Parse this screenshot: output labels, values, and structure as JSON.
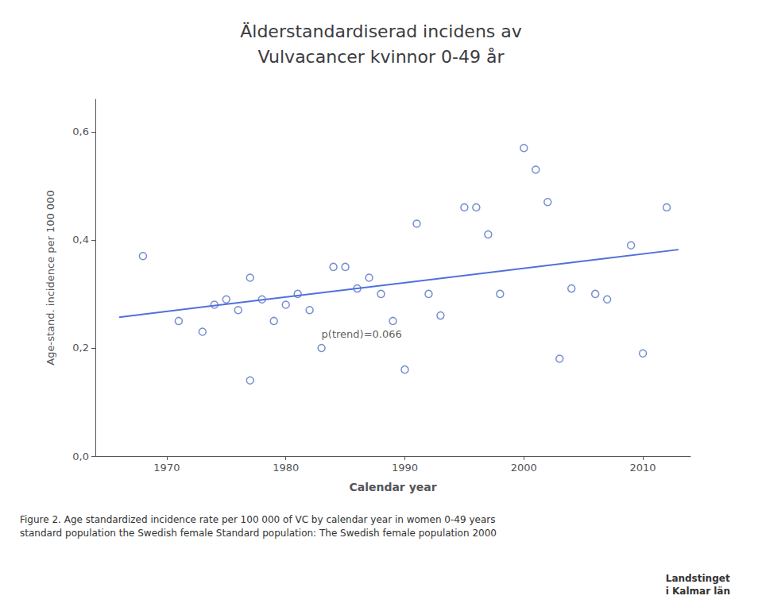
{
  "chart_data": {
    "type": "scatter",
    "title": "Älderstandardiserad incidens av\nVulvacancer kvinnor 0-49 år",
    "xlabel": "Calendar year",
    "ylabel": "Age-stand. incidence per 100 000",
    "series": [
      {
        "type": "scatter",
        "marker": "circle",
        "x": [
          1968,
          1971,
          1973,
          1974,
          1975,
          1976,
          1977,
          1978,
          1979,
          1980,
          1977,
          1981,
          1982,
          1983,
          1984,
          1985,
          1986,
          1987,
          1988,
          1989,
          1990,
          1991,
          1992,
          1993,
          1995,
          1996,
          1997,
          1998,
          2000,
          2001,
          2002,
          2003,
          2004,
          2006,
          2007,
          2009,
          2010,
          2012
        ],
        "values": [
          0.37,
          0.25,
          0.23,
          0.28,
          0.29,
          0.27,
          0.33,
          0.29,
          0.25,
          0.28,
          0.14,
          0.3,
          0.27,
          0.2,
          0.35,
          0.35,
          0.31,
          0.33,
          0.3,
          0.25,
          0.16,
          0.43,
          0.3,
          0.26,
          0.46,
          0.46,
          0.41,
          0.3,
          0.57,
          0.53,
          0.47,
          0.18,
          0.31,
          0.3,
          0.29,
          0.39,
          0.19,
          0.46
        ]
      },
      {
        "type": "line",
        "line_style": "solid",
        "x": [
          1966,
          2013
        ],
        "values": [
          0.257,
          0.382
        ]
      }
    ],
    "annotations": [
      {
        "text": "p(trend)=0.066",
        "x": 1983,
        "y": 0.235
      }
    ],
    "caption": "Figure 2. Age standardized incidence rate per 100 000 of VC by calendar year in women 0-49 years\nstandard population the Swedish female Standard population: The Swedish female population 2000",
    "logo": [
      "Landstinget",
      "i Kalmar län"
    ],
    "xlim": [
      1964,
      2014
    ],
    "ylim": [
      0.0,
      0.66
    ],
    "xticks": [
      1970,
      1980,
      1990,
      2000,
      2010
    ],
    "yticks": [
      {
        "value": 0.0,
        "label": "0,0"
      },
      {
        "value": 0.2,
        "label": "0,2"
      },
      {
        "value": 0.4,
        "label": "0,4"
      },
      {
        "value": 0.6,
        "label": "0,6"
      }
    ],
    "grid": false
  }
}
